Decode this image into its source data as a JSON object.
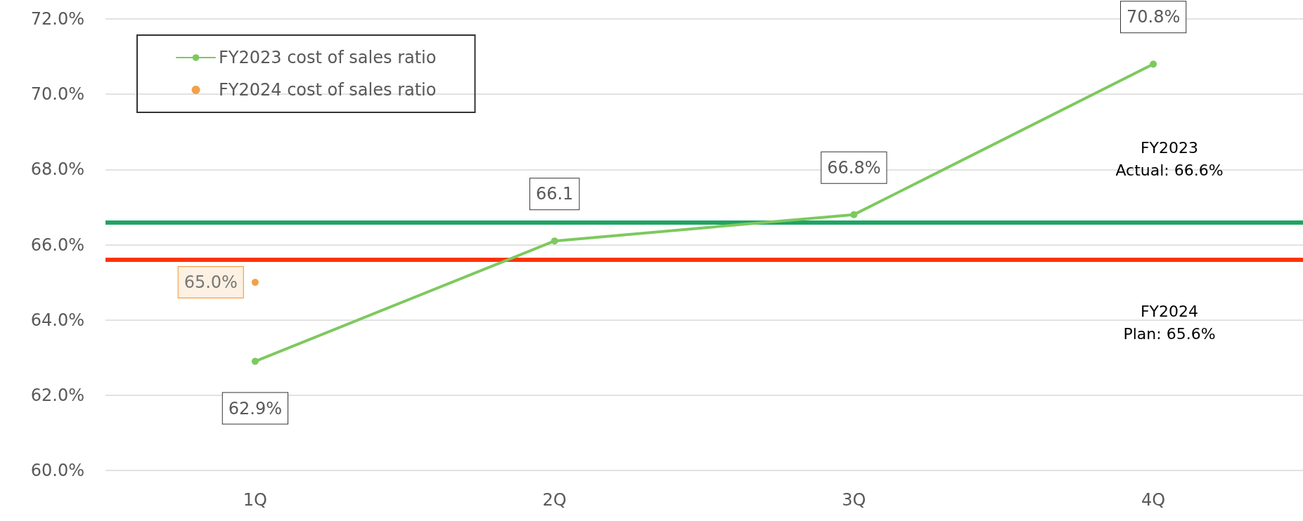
{
  "chart_data": {
    "type": "line",
    "categories": [
      "1Q",
      "2Q",
      "3Q",
      "4Q"
    ],
    "series": [
      {
        "name": "FY2023 cost of sales ratio",
        "type": "line",
        "color": "#7dc95e",
        "values": [
          62.9,
          66.1,
          66.8,
          70.8
        ],
        "value_labels": [
          "62.9%",
          "66.1",
          "66.8%",
          "70.8%"
        ]
      },
      {
        "name": "FY2024 cost of sales ratio",
        "type": "scatter",
        "color": "#f08a1c",
        "values": [
          65.0,
          null,
          null,
          null
        ],
        "value_labels": [
          "65.0%",
          null,
          null,
          null
        ]
      }
    ],
    "ylim": [
      60,
      72
    ],
    "yticks": [
      {
        "value": 60,
        "label": "60.0%"
      },
      {
        "value": 62,
        "label": "62.0%"
      },
      {
        "value": 64,
        "label": "64.0%"
      },
      {
        "value": 66,
        "label": "66.0%"
      },
      {
        "value": 68,
        "label": "68.0%"
      },
      {
        "value": 70,
        "label": "70.0%"
      },
      {
        "value": 72,
        "label": "72.0%"
      }
    ],
    "ref_lines": [
      {
        "axis": "y",
        "value": 66.6,
        "label": "FY2023\nActual: 66.6%",
        "color": "#1fa463"
      },
      {
        "axis": "y",
        "value": 65.6,
        "label": "FY2024\nPlan: 65.6%",
        "color": "#ff3300"
      }
    ],
    "grid": "y",
    "legend": "top left",
    "marker": "circle",
    "line_style": "solid"
  }
}
